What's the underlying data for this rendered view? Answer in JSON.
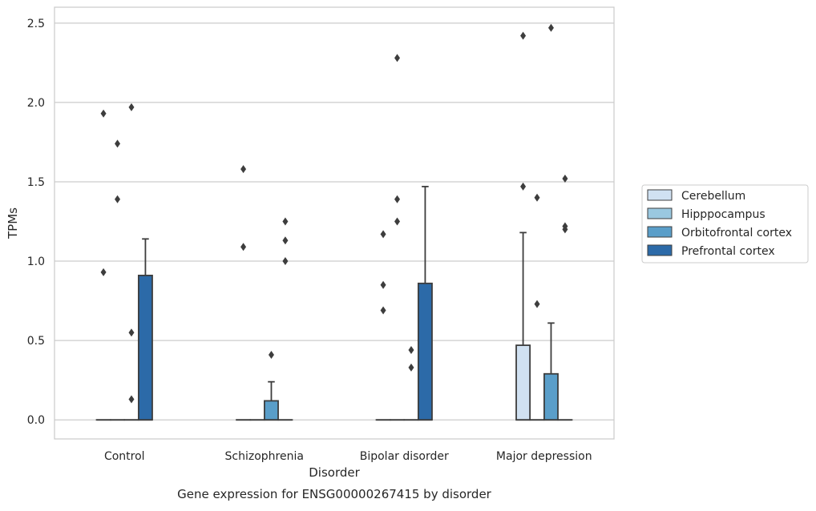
{
  "chart_data": {
    "type": "box",
    "title": "",
    "caption": "Gene expression for ENSG00000267415 by disorder",
    "xlabel": "Disorder",
    "ylabel": "TPMs",
    "ylim": [
      -0.12,
      2.6
    ],
    "yticks": [
      0.0,
      0.5,
      1.0,
      1.5,
      2.0,
      2.5
    ],
    "ytick_labels": [
      "0.0",
      "0.5",
      "1.0",
      "1.5",
      "2.0",
      "2.5"
    ],
    "grid": "horizontal",
    "legend_position": "right",
    "categories": [
      "Control",
      "Schizophrenia",
      "Bipolar disorder",
      "Major depression"
    ],
    "series": [
      {
        "name": "Cerebellum",
        "color": "#d0e1f2",
        "boxes": [
          {
            "q1": 0,
            "median": 0,
            "q3": 0,
            "whisker_low": 0,
            "whisker_high": 0,
            "outliers": [
              0.93,
              1.93
            ]
          },
          {
            "q1": 0,
            "median": 0,
            "q3": 0,
            "whisker_low": 0,
            "whisker_high": 0,
            "outliers": [
              1.09,
              1.58
            ]
          },
          {
            "q1": 0,
            "median": 0,
            "q3": 0,
            "whisker_low": 0,
            "whisker_high": 0,
            "outliers": [
              0.69,
              0.85,
              1.17
            ]
          },
          {
            "q1": 0,
            "median": 0,
            "q3": 0.47,
            "whisker_low": 0,
            "whisker_high": 1.18,
            "outliers": [
              1.47,
              2.42
            ]
          }
        ]
      },
      {
        "name": "Hipppocampus",
        "color": "#9ac8e0",
        "boxes": [
          {
            "q1": 0,
            "median": 0,
            "q3": 0,
            "whisker_low": 0,
            "whisker_high": 0,
            "outliers": [
              1.39,
              1.74
            ]
          },
          {
            "q1": 0,
            "median": 0,
            "q3": 0,
            "whisker_low": 0,
            "whisker_high": 0,
            "outliers": []
          },
          {
            "q1": 0,
            "median": 0,
            "q3": 0,
            "whisker_low": 0,
            "whisker_high": 0,
            "outliers": [
              1.25,
              1.39,
              2.28
            ]
          },
          {
            "q1": 0,
            "median": 0,
            "q3": 0,
            "whisker_low": 0,
            "whisker_high": 0,
            "outliers": [
              0.73,
              1.4
            ]
          }
        ]
      },
      {
        "name": "Orbitofrontal cortex",
        "color": "#5a9ec9",
        "boxes": [
          {
            "q1": 0,
            "median": 0,
            "q3": 0,
            "whisker_low": 0,
            "whisker_high": 0,
            "outliers": [
              0.13,
              0.55,
              1.97
            ]
          },
          {
            "q1": 0,
            "median": 0,
            "q3": 0.12,
            "whisker_low": 0,
            "whisker_high": 0.24,
            "outliers": [
              0.41
            ]
          },
          {
            "q1": 0,
            "median": 0,
            "q3": 0,
            "whisker_low": 0,
            "whisker_high": 0,
            "outliers": [
              0.33,
              0.44
            ]
          },
          {
            "q1": 0,
            "median": 0,
            "q3": 0.29,
            "whisker_low": 0,
            "whisker_high": 0.61,
            "outliers": [
              2.47
            ]
          }
        ]
      },
      {
        "name": "Prefrontal cortex",
        "color": "#2c6aa8",
        "boxes": [
          {
            "q1": 0,
            "median": 0,
            "q3": 0.91,
            "whisker_low": 0,
            "whisker_high": 1.14,
            "outliers": []
          },
          {
            "q1": 0,
            "median": 0,
            "q3": 0,
            "whisker_low": 0,
            "whisker_high": 0,
            "outliers": [
              1.0,
              1.13,
              1.25
            ]
          },
          {
            "q1": 0,
            "median": 0,
            "q3": 0.86,
            "whisker_low": 0,
            "whisker_high": 1.47,
            "outliers": []
          },
          {
            "q1": 0,
            "median": 0,
            "q3": 0,
            "whisker_low": 0,
            "whisker_high": 0,
            "outliers": [
              1.2,
              1.22,
              1.52
            ]
          }
        ]
      }
    ]
  }
}
